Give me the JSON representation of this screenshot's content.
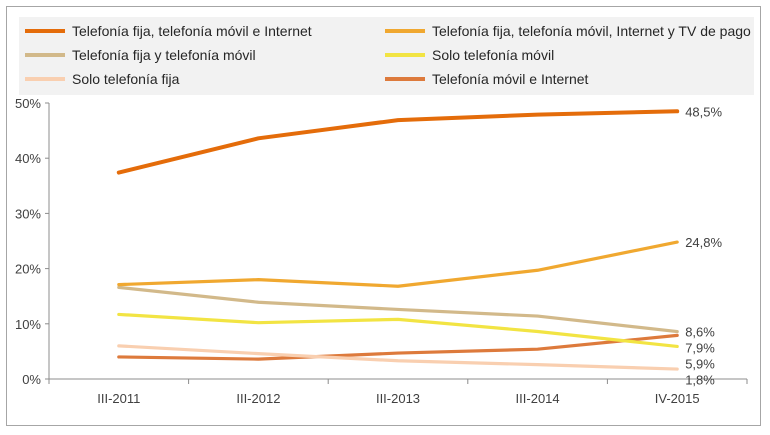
{
  "chart_data": {
    "type": "line",
    "categories": [
      "III-2011",
      "III-2012",
      "III-2013",
      "III-2014",
      "IV-2015"
    ],
    "ylim": [
      0,
      50
    ],
    "yticks": [
      "0%",
      "10%",
      "20%",
      "30%",
      "40%",
      "50%"
    ],
    "grid": false,
    "legend_position": "top",
    "series": [
      {
        "name": "Telefonía fija, telefonía móvil e Internet",
        "color": "#e46c0a",
        "values": [
          37.4,
          43.6,
          46.9,
          47.9,
          48.5
        ],
        "end_label": "48,5%"
      },
      {
        "name": "Telefonía fija, telefonía móvil, Internet y TV de pago",
        "color": "#f0a830",
        "values": [
          17.1,
          18.0,
          16.8,
          19.7,
          24.8
        ],
        "end_label": "24,8%"
      },
      {
        "name": "Telefonía fija y telefonía móvil",
        "color": "#d2b98a",
        "values": [
          16.6,
          13.9,
          12.6,
          11.4,
          8.6
        ],
        "end_label": "8,6%"
      },
      {
        "name": "Solo telefonía móvil",
        "color": "#f2e443",
        "values": [
          11.7,
          10.2,
          10.8,
          8.6,
          5.9
        ],
        "end_label": "5,9%"
      },
      {
        "name": "Solo telefonía fija",
        "color": "#f9cfb0",
        "values": [
          6.0,
          4.6,
          3.3,
          2.6,
          1.8
        ],
        "end_label": "1,8%"
      },
      {
        "name": "Telefonía móvil e Internet",
        "color": "#dd7a3c",
        "values": [
          4.0,
          3.6,
          4.7,
          5.4,
          7.9
        ],
        "end_label": "7,9%"
      }
    ]
  }
}
